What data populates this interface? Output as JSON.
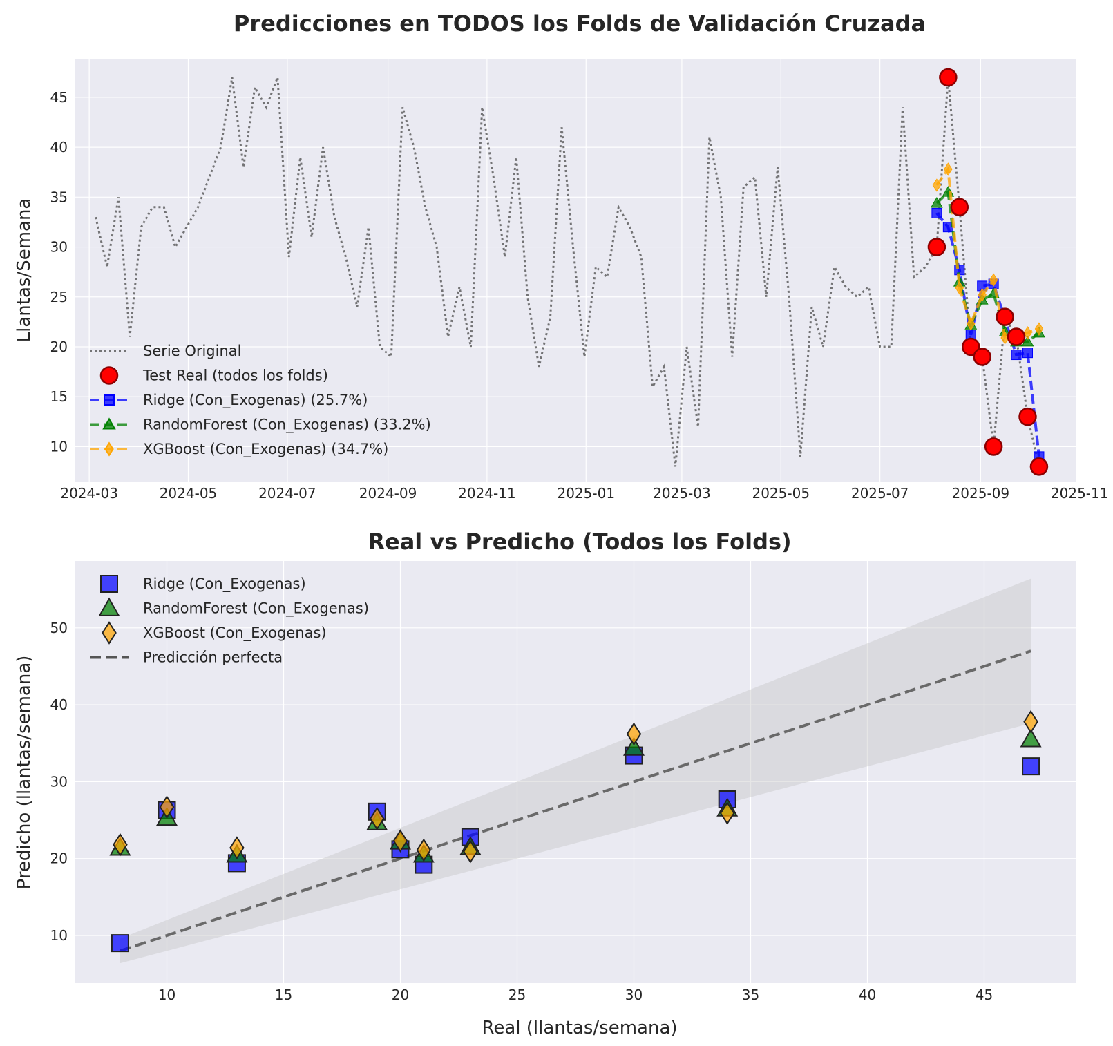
{
  "chart_data": [
    {
      "type": "line",
      "title": "Predicciones en TODOS los Folds de Validación Cruzada",
      "xlabel": "",
      "ylabel": "Llantas/Semana",
      "xlim": [
        "2024-02-21",
        "2025-10-30"
      ],
      "ylim": [
        6.5,
        48.8
      ],
      "x_tick_labels": [
        "2024-03",
        "2024-05",
        "2024-07",
        "2024-09",
        "2024-11",
        "2025-01",
        "2025-03",
        "2025-05",
        "2025-07",
        "2025-09",
        "2025-11"
      ],
      "y_tick_labels": [
        "10",
        "15",
        "20",
        "25",
        "30",
        "35",
        "40",
        "45"
      ],
      "grid": true,
      "legend_position": "lower-left",
      "series": [
        {
          "name": "Serie Original",
          "style": "dotted",
          "color": "#555555",
          "points": [
            [
              "2024-03-05",
              33
            ],
            [
              "2024-03-12",
              28
            ],
            [
              "2024-03-19",
              35
            ],
            [
              "2024-03-26",
              21
            ],
            [
              "2024-04-02",
              32
            ],
            [
              "2024-04-09",
              34
            ],
            [
              "2024-04-16",
              34
            ],
            [
              "2024-04-23",
              30
            ],
            [
              "2024-04-30",
              32
            ],
            [
              "2024-05-07",
              34
            ],
            [
              "2024-05-14",
              37
            ],
            [
              "2024-05-21",
              40
            ],
            [
              "2024-05-28",
              47
            ],
            [
              "2024-06-04",
              38
            ],
            [
              "2024-06-11",
              46
            ],
            [
              "2024-06-18",
              44
            ],
            [
              "2024-06-25",
              47
            ],
            [
              "2024-07-02",
              29
            ],
            [
              "2024-07-09",
              39
            ],
            [
              "2024-07-16",
              31
            ],
            [
              "2024-07-23",
              40
            ],
            [
              "2024-07-30",
              33
            ],
            [
              "2024-08-06",
              29
            ],
            [
              "2024-08-13",
              24
            ],
            [
              "2024-08-20",
              32
            ],
            [
              "2024-08-27",
              20
            ],
            [
              "2024-09-03",
              19
            ],
            [
              "2024-09-10",
              44
            ],
            [
              "2024-09-17",
              40
            ],
            [
              "2024-09-24",
              34
            ],
            [
              "2024-10-01",
              30
            ],
            [
              "2024-10-08",
              21
            ],
            [
              "2024-10-15",
              26
            ],
            [
              "2024-10-22",
              20
            ],
            [
              "2024-10-29",
              44
            ],
            [
              "2024-11-05",
              37
            ],
            [
              "2024-11-12",
              29
            ],
            [
              "2024-11-19",
              39
            ],
            [
              "2024-11-26",
              25
            ],
            [
              "2024-12-03",
              18
            ],
            [
              "2024-12-10",
              23
            ],
            [
              "2024-12-17",
              42
            ],
            [
              "2024-12-24",
              30
            ],
            [
              "2024-12-31",
              19
            ],
            [
              "2025-01-07",
              28
            ],
            [
              "2025-01-14",
              27
            ],
            [
              "2025-01-21",
              34
            ],
            [
              "2025-01-28",
              32
            ],
            [
              "2025-02-04",
              29
            ],
            [
              "2025-02-11",
              16
            ],
            [
              "2025-02-18",
              18
            ],
            [
              "2025-02-25",
              8
            ],
            [
              "2025-03-04",
              20
            ],
            [
              "2025-03-11",
              12
            ],
            [
              "2025-03-18",
              41
            ],
            [
              "2025-03-25",
              35
            ],
            [
              "2025-04-01",
              19
            ],
            [
              "2025-04-08",
              36
            ],
            [
              "2025-04-15",
              37
            ],
            [
              "2025-04-22",
              25
            ],
            [
              "2025-04-29",
              38
            ],
            [
              "2025-05-06",
              25
            ],
            [
              "2025-05-13",
              9
            ],
            [
              "2025-05-20",
              24
            ],
            [
              "2025-05-27",
              20
            ],
            [
              "2025-06-03",
              28
            ],
            [
              "2025-06-10",
              26
            ],
            [
              "2025-06-17",
              25
            ],
            [
              "2025-06-24",
              26
            ],
            [
              "2025-07-01",
              20
            ],
            [
              "2025-07-08",
              20
            ],
            [
              "2025-07-15",
              44
            ],
            [
              "2025-07-22",
              27
            ],
            [
              "2025-07-29",
              28
            ],
            [
              "2025-08-05",
              30
            ],
            [
              "2025-08-12",
              47
            ],
            [
              "2025-08-19",
              34
            ],
            [
              "2025-08-26",
              20
            ],
            [
              "2025-09-02",
              19
            ],
            [
              "2025-09-09",
              10
            ],
            [
              "2025-09-16",
              23
            ],
            [
              "2025-09-23",
              21
            ],
            [
              "2025-09-30",
              13
            ],
            [
              "2025-10-07",
              8
            ]
          ]
        },
        {
          "name": "Test Real (todos los folds)",
          "style": "markers",
          "color": "#ff0000",
          "points": [
            [
              "2025-08-05",
              30
            ],
            [
              "2025-08-12",
              47
            ],
            [
              "2025-08-19",
              34
            ],
            [
              "2025-08-26",
              20
            ],
            [
              "2025-09-02",
              19
            ],
            [
              "2025-09-09",
              10
            ],
            [
              "2025-09-16",
              23
            ],
            [
              "2025-09-23",
              21
            ],
            [
              "2025-09-30",
              13
            ],
            [
              "2025-10-07",
              8
            ]
          ]
        },
        {
          "name": "Ridge (Con_Exogenas) (25.7%)",
          "style": "dashed-square",
          "color": "#0000ff",
          "points": [
            [
              "2025-08-05",
              33.4
            ],
            [
              "2025-08-12",
              32
            ],
            [
              "2025-08-19",
              27.7
            ],
            [
              "2025-08-26",
              21.2
            ],
            [
              "2025-09-02",
              26.1
            ],
            [
              "2025-09-09",
              26.3
            ],
            [
              "2025-09-16",
              22.8
            ],
            [
              "2025-09-23",
              19.2
            ],
            [
              "2025-09-30",
              19.4
            ],
            [
              "2025-10-07",
              9
            ]
          ]
        },
        {
          "name": "RandomForest (Con_Exogenas) (33.2%)",
          "style": "dashed-triangle",
          "color": "#008000",
          "points": [
            [
              "2025-08-05",
              34.4
            ],
            [
              "2025-08-12",
              35.5
            ],
            [
              "2025-08-19",
              26.5
            ],
            [
              "2025-08-26",
              22.2
            ],
            [
              "2025-09-02",
              24.7
            ],
            [
              "2025-09-09",
              25.3
            ],
            [
              "2025-09-16",
              21.5
            ],
            [
              "2025-09-23",
              20.5
            ],
            [
              "2025-09-30",
              20.5
            ],
            [
              "2025-10-07",
              21.4
            ]
          ]
        },
        {
          "name": "XGBoost (Con_Exogenas) (34.7%)",
          "style": "dashed-diamond",
          "color": "#ffa500",
          "points": [
            [
              "2025-08-05",
              36.2
            ],
            [
              "2025-08-12",
              37.8
            ],
            [
              "2025-08-19",
              25.9
            ],
            [
              "2025-08-26",
              22.3
            ],
            [
              "2025-09-02",
              25.2
            ],
            [
              "2025-09-09",
              26.7
            ],
            [
              "2025-09-16",
              20.9
            ],
            [
              "2025-09-23",
              21.1
            ],
            [
              "2025-09-30",
              21.4
            ],
            [
              "2025-10-07",
              21.8
            ]
          ]
        }
      ]
    },
    {
      "type": "scatter",
      "title": "Real vs Predicho (Todos los Folds)",
      "xlabel": "Real (llantas/semana)",
      "ylabel": "Predicho (llantas/semana)",
      "xlim": [
        6.05,
        48.95
      ],
      "ylim": [
        3.8,
        58.7
      ],
      "x_tick_labels": [
        "10",
        "15",
        "20",
        "25",
        "30",
        "35",
        "40",
        "45"
      ],
      "y_tick_labels": [
        "10",
        "20",
        "30",
        "40",
        "50"
      ],
      "grid": true,
      "legend_position": "top-left",
      "band": {
        "lower_factor": 0.8,
        "upper_factor": 1.2,
        "x_range": [
          8,
          47
        ]
      },
      "perfect_line": {
        "name": "Predicción perfecta",
        "x": [
          8,
          47
        ],
        "y": [
          8,
          47
        ]
      },
      "series": [
        {
          "name": "Ridge (Con_Exogenas)",
          "marker": "square",
          "color": "#0000ff",
          "points": [
            [
              30,
              33.4
            ],
            [
              47,
              32
            ],
            [
              34,
              27.7
            ],
            [
              20,
              21.2
            ],
            [
              19,
              26.1
            ],
            [
              10,
              26.3
            ],
            [
              23,
              22.8
            ],
            [
              21,
              19.2
            ],
            [
              13,
              19.4
            ],
            [
              8,
              9
            ]
          ]
        },
        {
          "name": "RandomForest (Con_Exogenas)",
          "marker": "triangle",
          "color": "#008000",
          "points": [
            [
              30,
              34.4
            ],
            [
              47,
              35.5
            ],
            [
              34,
              26.5
            ],
            [
              20,
              22.2
            ],
            [
              19,
              24.7
            ],
            [
              10,
              25.3
            ],
            [
              23,
              21.5
            ],
            [
              21,
              20.5
            ],
            [
              13,
              20.5
            ],
            [
              8,
              21.4
            ]
          ]
        },
        {
          "name": "XGBoost (Con_Exogenas)",
          "marker": "diamond",
          "color": "#ffa500",
          "points": [
            [
              30,
              36.2
            ],
            [
              47,
              37.8
            ],
            [
              34,
              25.9
            ],
            [
              20,
              22.3
            ],
            [
              19,
              25.2
            ],
            [
              10,
              26.7
            ],
            [
              23,
              20.9
            ],
            [
              21,
              21.1
            ],
            [
              13,
              21.4
            ],
            [
              8,
              21.8
            ]
          ]
        }
      ]
    }
  ]
}
